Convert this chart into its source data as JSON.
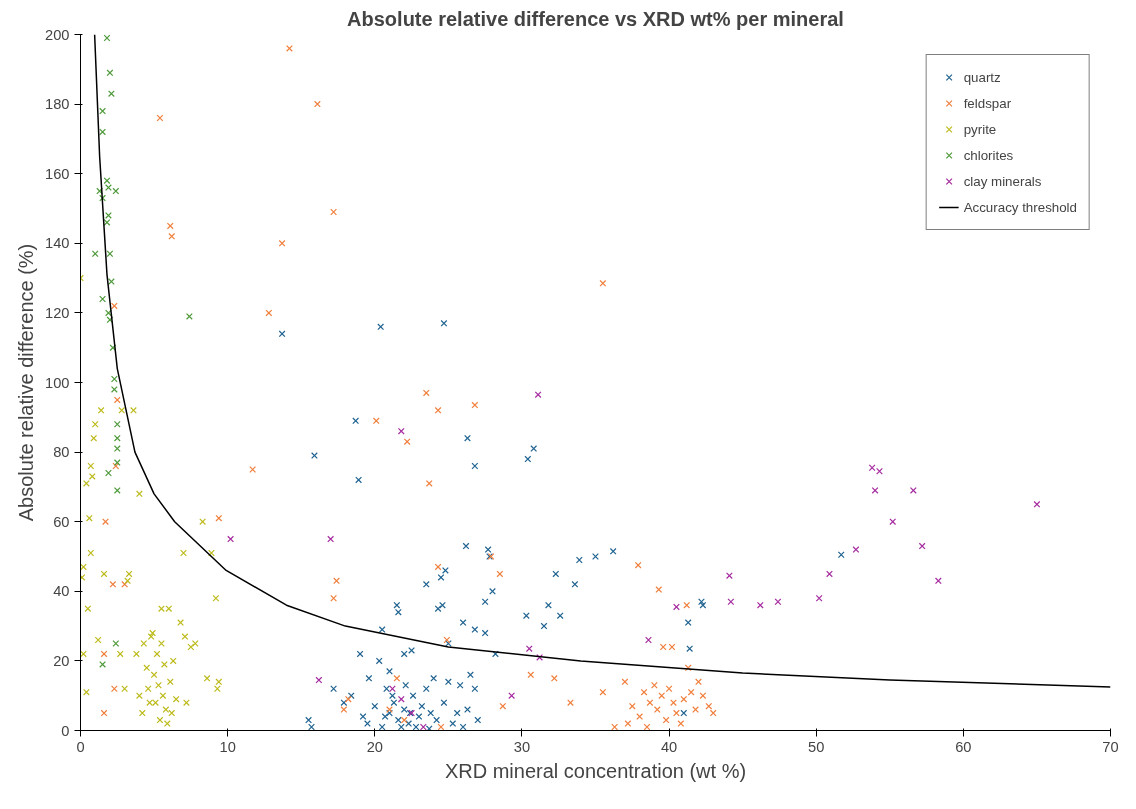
{
  "chart_data": {
    "type": "scatter",
    "title": "Absolute relative difference vs XRD wt% per mineral",
    "xlabel": "XRD mineral concentration (wt %)",
    "ylabel": "Absolute relative difference (%)",
    "xlim": [
      0,
      70
    ],
    "ylim": [
      0,
      200
    ],
    "xticks": [
      0,
      10,
      20,
      30,
      40,
      50,
      60,
      70
    ],
    "yticks": [
      0,
      20,
      40,
      60,
      80,
      100,
      120,
      140,
      160,
      180,
      200
    ],
    "grid": false,
    "legend": "top right",
    "marker": "cross",
    "series": [
      {
        "name": "quartz",
        "color": "#1f6391",
        "x": [
          13.7,
          20.4,
          24.7,
          15.9,
          18.7,
          18.9,
          26.3,
          26.8,
          30.4,
          30.8,
          15.5,
          15.7,
          17.2,
          17.9,
          18.4,
          19,
          19.6,
          20.3,
          20.5,
          21,
          21.5,
          21.6,
          22,
          22.5,
          23.5,
          24.3,
          24.5,
          24.6,
          24.8,
          25,
          26,
          26.2,
          26.8,
          27.5,
          27.5,
          27.7,
          27.8,
          28,
          28.2,
          30.3,
          31.5,
          31.8,
          32.3,
          32.6,
          33.6,
          33.9,
          35,
          36.2,
          41.3,
          41.4,
          42.2,
          42.3,
          51.7,
          41,
          25,
          25.8,
          26.5,
          19.2,
          19.5,
          20,
          20.5,
          21,
          21.3,
          21.6,
          22,
          22.3,
          22.6,
          23,
          23.2,
          23.5,
          23.8,
          24,
          24.2,
          24.7,
          25.3,
          26,
          26.3,
          27,
          20.8,
          21.8,
          22.8,
          23.7,
          21.2,
          22.1,
          20.7,
          22.4,
          25.6,
          26.8
        ],
        "values": [
          114,
          116,
          117,
          79,
          89,
          72,
          84,
          76,
          78,
          81,
          3,
          1,
          12,
          8,
          10,
          22,
          15,
          20,
          29,
          17,
          36,
          34,
          22,
          23,
          42,
          35,
          44,
          36,
          46,
          25,
          31,
          53,
          29,
          28,
          37,
          52,
          50,
          40,
          22,
          33,
          30,
          36,
          45,
          33,
          42,
          49,
          50,
          51.5,
          31,
          23.5,
          37,
          36,
          50.5,
          5,
          14,
          13,
          16,
          4,
          2,
          7,
          1,
          5,
          8,
          3,
          6,
          2,
          10,
          4,
          7,
          12,
          5,
          15,
          3,
          8,
          2,
          1,
          6,
          3,
          12,
          1,
          1,
          0.5,
          10,
          13,
          4,
          5,
          5,
          12
        ]
      },
      {
        "name": "feldspar",
        "color": "#f07f3c",
        "x": [
          14.2,
          16.1,
          5.4,
          17.2,
          6.1,
          6.2,
          13.7,
          12.8,
          35.5,
          2.3,
          23.5,
          24.3,
          26.8,
          20.1,
          22.2,
          23.7,
          11.7,
          2.5,
          2.4,
          9.4,
          1.7,
          1.6,
          1.6,
          2.2,
          2.3,
          3,
          17.4,
          17.2,
          24.3,
          27.9,
          28.5,
          24.9,
          18.2,
          17.9,
          30.6,
          32.2,
          33.3,
          35.5,
          36.3,
          37.9,
          39.3,
          39.6,
          40.2,
          41.2,
          41.3,
          37,
          37.5,
          38,
          38.3,
          38.7,
          39,
          39.2,
          39.5,
          39.8,
          40,
          40.3,
          40.5,
          40.8,
          41,
          41.5,
          41.8,
          42,
          42.3,
          42.7,
          43,
          37.2,
          38.5,
          24.5,
          28.7,
          21,
          21.5,
          22
        ],
        "values": [
          196,
          180,
          176,
          149,
          145,
          142,
          140,
          120,
          128.5,
          122,
          97,
          92,
          93.5,
          89,
          83,
          71,
          75,
          95,
          76,
          61,
          60,
          22,
          5,
          42,
          12,
          42,
          43,
          38,
          47,
          50,
          45,
          26,
          9,
          6,
          16,
          15,
          8,
          11,
          1,
          47.5,
          40.5,
          24,
          24,
          36,
          18,
          14,
          7,
          4,
          11,
          8,
          13,
          6,
          10,
          3,
          12,
          8,
          5,
          2,
          9,
          11,
          6,
          14,
          10,
          7,
          5,
          2,
          1,
          1,
          7,
          6,
          15,
          3
        ]
      },
      {
        "name": "pyrite",
        "color": "#bdbb1c",
        "x": [
          0,
          0.2,
          0.1,
          0.2,
          0.4,
          0.5,
          0.4,
          0.6,
          0.7,
          0.8,
          0.9,
          1,
          0.7,
          1.4,
          1.6,
          1.2,
          2.8,
          3.6,
          3.3,
          3.2,
          3,
          2.7,
          4,
          3.8,
          4,
          4.2,
          4.5,
          4.6,
          4.8,
          5,
          5.1,
          5.2,
          5.3,
          5.4,
          5.5,
          5.6,
          5.7,
          5.8,
          5.9,
          6,
          6.1,
          6.3,
          6.5,
          6.8,
          7,
          7.1,
          7.2,
          7.5,
          7.8,
          8.3,
          8.6,
          8.9,
          9.2,
          9.4,
          9.3,
          4.3,
          4.7,
          5.5,
          6.2,
          4.9
        ],
        "values": [
          130,
          47,
          44,
          22,
          11,
          35,
          71,
          61,
          76,
          73,
          84,
          88,
          51,
          92,
          45,
          26,
          92,
          92,
          45,
          43,
          12,
          22,
          68,
          22,
          10,
          5,
          18,
          12,
          27,
          16,
          8,
          22,
          13,
          3,
          35,
          10,
          19,
          6,
          2,
          35,
          14,
          20,
          9,
          31,
          51,
          27,
          8,
          24,
          25,
          60,
          15,
          51,
          38,
          14,
          12,
          25,
          8,
          25,
          5,
          28
        ]
      },
      {
        "name": "chlorites",
        "color": "#4e9a3a",
        "x": [
          1.8,
          2,
          2.1,
          1.5,
          1.5,
          1.8,
          1.9,
          2.4,
          1.5,
          1.9,
          1.8,
          1,
          2,
          1.5,
          2.1,
          1.9,
          2,
          2.2,
          2.3,
          2.3,
          2.5,
          2.5,
          2.5,
          2.5,
          2.5,
          1.9,
          2.4,
          1.5,
          7.4,
          1.3
        ],
        "values": [
          199,
          189,
          183,
          178,
          172,
          158,
          156,
          155,
          153,
          148,
          146,
          137,
          137,
          124,
          129,
          120,
          118,
          110,
          101,
          98,
          88,
          84,
          81,
          77,
          69,
          74,
          25,
          19,
          119,
          155
        ]
      },
      {
        "name": "clay minerals",
        "color": "#a52a9f",
        "x": [
          65,
          53.8,
          54.3,
          54,
          56.6,
          55.2,
          57.2,
          52.7,
          50.9,
          58.3,
          44.1,
          44.2,
          47.4,
          46.2,
          50.2,
          40.5,
          38.6,
          31.1,
          21.8,
          17,
          10.2,
          30.5,
          31.2,
          16.2,
          21.2,
          29.3,
          21.8,
          23.3,
          22.5
        ],
        "values": [
          65,
          75.5,
          74.5,
          69,
          69,
          60,
          53,
          52,
          45,
          43,
          44.5,
          37,
          37,
          36,
          38,
          35.5,
          26,
          96.5,
          86,
          55,
          55,
          23.5,
          21,
          14.5,
          12,
          10,
          9,
          1,
          5
        ]
      },
      {
        "name": "Accuracy threshold",
        "type": "line",
        "color": "#000000",
        "marker": "none",
        "x": [
          0.96,
          1.3,
          1.8,
          2.5,
          3.7,
          5,
          6.4,
          9.9,
          14,
          18,
          25,
          34,
          45,
          55,
          70
        ],
        "values": [
          200,
          165,
          131,
          104,
          80,
          68,
          60,
          46,
          36,
          30,
          24,
          20,
          16.5,
          14.5,
          12.5
        ]
      }
    ]
  }
}
